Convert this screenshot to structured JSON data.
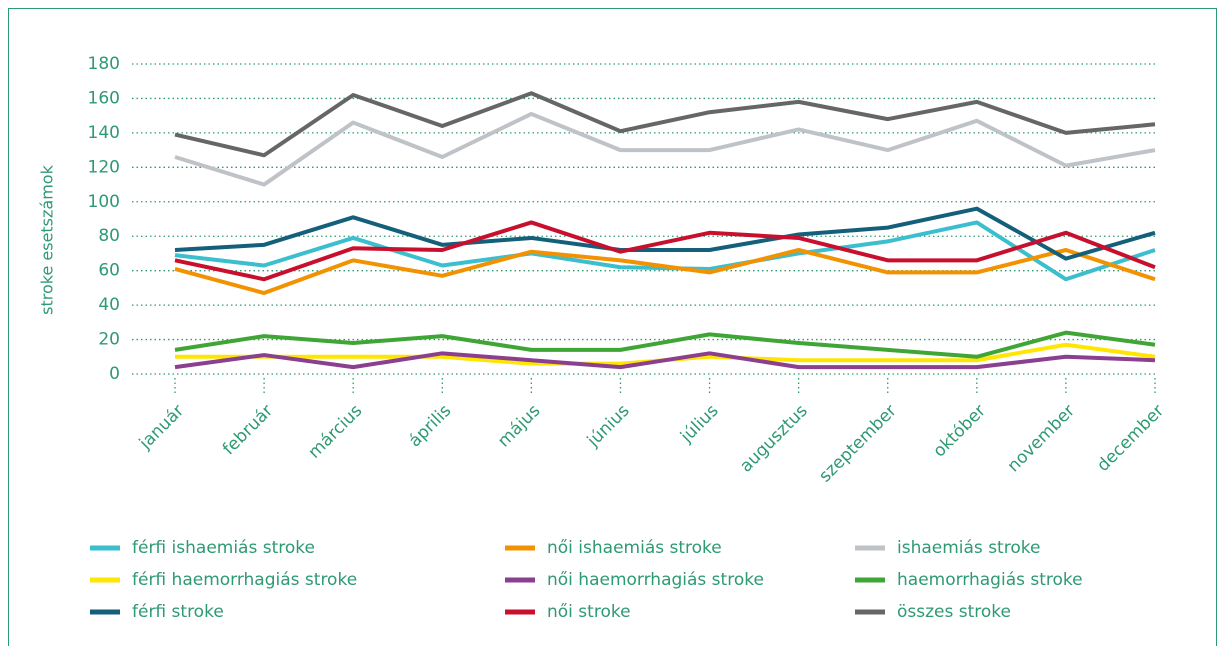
{
  "chart_data": {
    "type": "line",
    "y_label": "stroke esetszámok",
    "categories": [
      "január",
      "február",
      "március",
      "április",
      "május",
      "június",
      "július",
      "augusztus",
      "szeptember",
      "október",
      "november",
      "december"
    ],
    "ylim": [
      0,
      180
    ],
    "yticks": [
      0,
      20,
      40,
      60,
      80,
      100,
      120,
      140,
      160,
      180
    ],
    "grid": true,
    "series": [
      {
        "name": "férfi ishaemiás stroke",
        "color": "#3bbfcf",
        "values": [
          69,
          63,
          79,
          63,
          70,
          62,
          61,
          70,
          77,
          88,
          55,
          72
        ]
      },
      {
        "name": "női ishaemiás stroke",
        "color": "#f39200",
        "values": [
          61,
          47,
          66,
          57,
          71,
          66,
          59,
          72,
          59,
          59,
          72,
          55
        ]
      },
      {
        "name": "ishaemiás stroke",
        "color": "#bfc2c7",
        "values": [
          126,
          110,
          146,
          126,
          151,
          130,
          130,
          142,
          130,
          147,
          121,
          130
        ]
      },
      {
        "name": "férfi haemorrhagiás stroke",
        "color": "#ffe600",
        "values": [
          10,
          10,
          10,
          10,
          6,
          6,
          10,
          8,
          8,
          8,
          17,
          10
        ]
      },
      {
        "name": "női haemorrhagiás stroke",
        "color": "#8b3f8f",
        "values": [
          4,
          11,
          4,
          12,
          8,
          4,
          12,
          4,
          4,
          4,
          10,
          8
        ]
      },
      {
        "name": "haemorrhagiás stroke",
        "color": "#3fa535",
        "values": [
          14,
          22,
          18,
          22,
          14,
          14,
          23,
          18,
          14,
          10,
          24,
          17
        ]
      },
      {
        "name": "férfi stroke",
        "color": "#145f7a",
        "values": [
          72,
          75,
          91,
          75,
          79,
          72,
          72,
          81,
          85,
          96,
          67,
          82
        ]
      },
      {
        "name": "női stroke",
        "color": "#c8102e",
        "values": [
          66,
          55,
          73,
          72,
          88,
          71,
          82,
          79,
          66,
          66,
          82,
          62
        ]
      },
      {
        "name": "összes stroke",
        "color": "#666666",
        "values": [
          139,
          127,
          162,
          144,
          163,
          141,
          152,
          158,
          148,
          158,
          140,
          145
        ]
      }
    ]
  }
}
